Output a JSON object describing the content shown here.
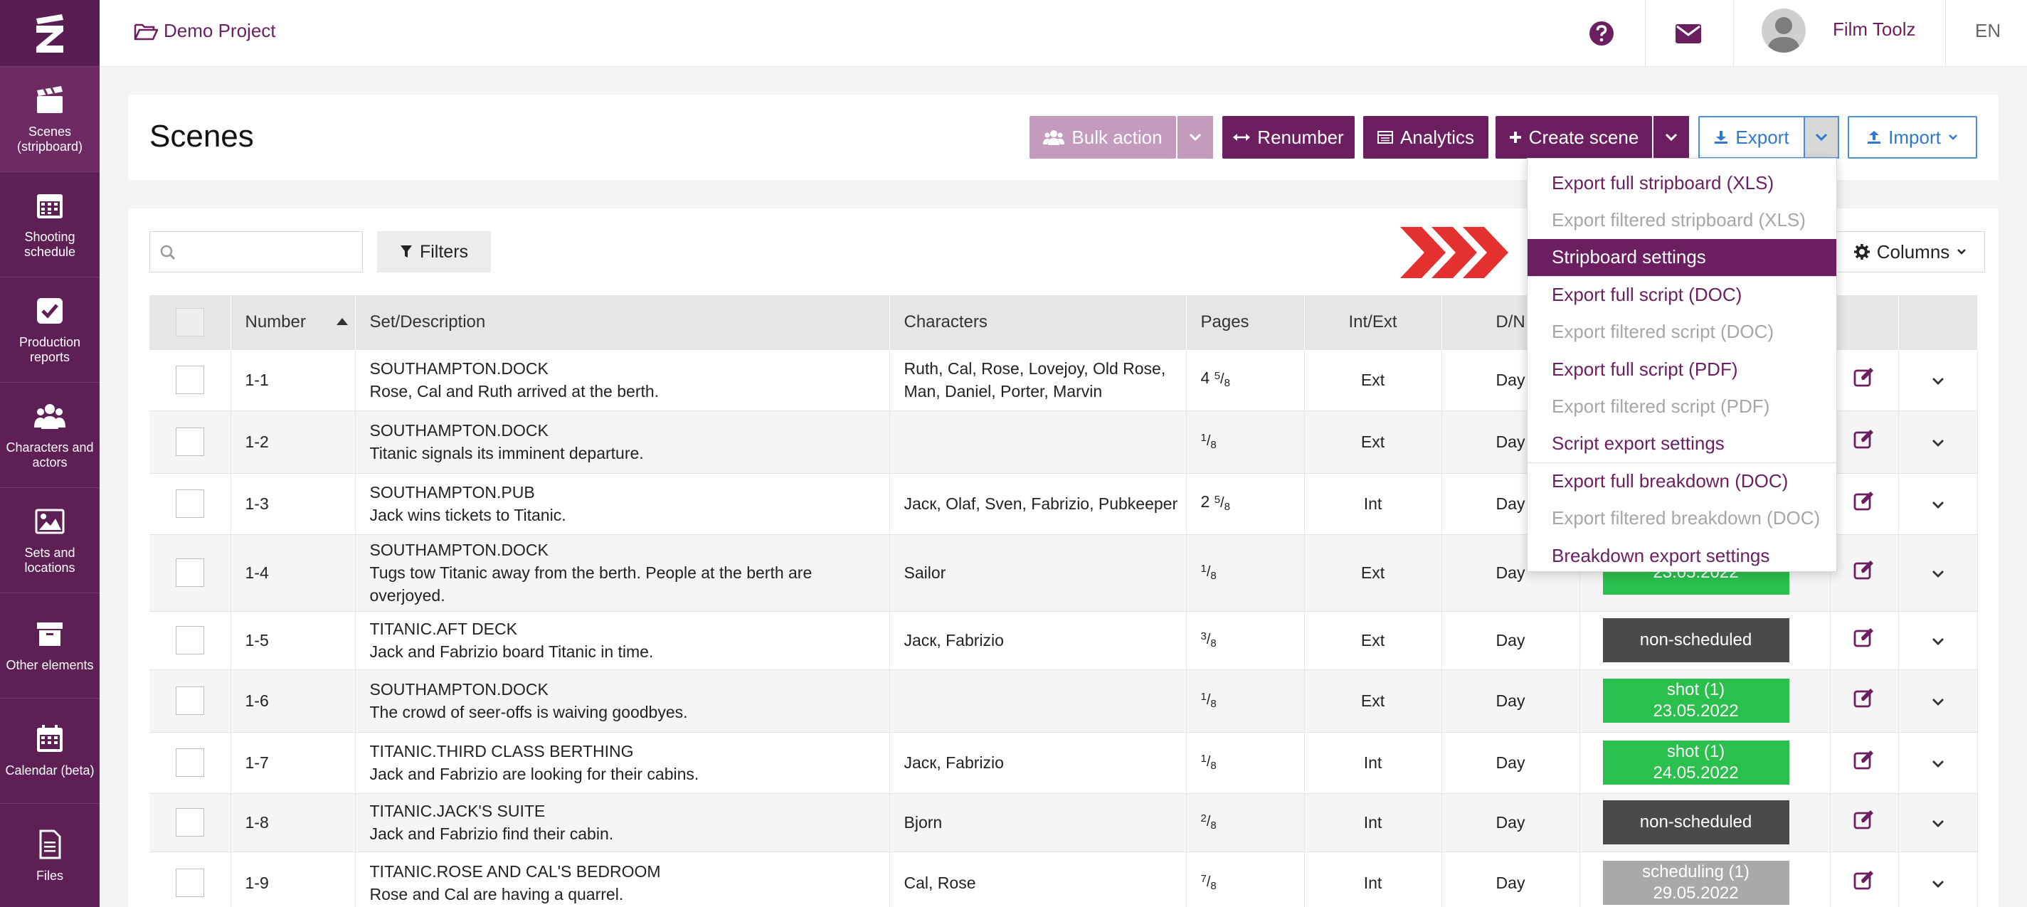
{
  "sidebar": {
    "items": [
      {
        "label": "Scenes (stripboard)",
        "icon": "clapperboard-icon"
      },
      {
        "label": "Shooting schedule",
        "icon": "calendar-grid-icon"
      },
      {
        "label": "Production reports",
        "icon": "checkbox-icon"
      },
      {
        "label": "Characters and actors",
        "icon": "users-icon"
      },
      {
        "label": "Sets and locations",
        "icon": "image-icon"
      },
      {
        "label": "Other elements",
        "icon": "archive-icon"
      },
      {
        "label": "Calendar (beta)",
        "icon": "calendar-icon"
      },
      {
        "label": "Files",
        "icon": "file-icon"
      }
    ]
  },
  "topbar": {
    "project": "Demo Project",
    "username": "Film Toolz",
    "language": "EN"
  },
  "header": {
    "title": "Scenes",
    "buttons": {
      "bulk": "Bulk action",
      "renumber": "Renumber",
      "analytics": "Analytics",
      "create": "Create scene",
      "export": "Export",
      "import": "Import"
    }
  },
  "toolbar": {
    "search_placeholder": "",
    "filters": "Filters",
    "columns": "Columns"
  },
  "table": {
    "columns": [
      "Number",
      "Set/Description",
      "Characters",
      "Pages",
      "Int/Ext",
      "D/N"
    ],
    "rows": [
      {
        "num": "1-1",
        "set": "SOUTHAMPTON.DOCK",
        "desc": "Rose, Cal and Ruth arrived at the berth.",
        "chars": "Ruth, Cal, Rose, Lovejoy, Old Rose, Man, Daniel, Porter, Marvin",
        "pw": "4",
        "pn": "5",
        "pd": "8",
        "ie": "Ext",
        "dn": "Day",
        "st1": "",
        "st2": "",
        "stc": ""
      },
      {
        "num": "1-2",
        "set": "SOUTHAMPTON.DOCK",
        "desc": "Titanic signals its imminent departure.",
        "chars": "",
        "pw": "",
        "pn": "1",
        "pd": "8",
        "ie": "Ext",
        "dn": "Day",
        "st1": "",
        "st2": "",
        "stc": ""
      },
      {
        "num": "1-3",
        "set": "SOUTHAMPTON.PUB",
        "desc": "Jack wins tickets to Titanic.",
        "chars": "Jacк, Olaf, Sven, Fabrizio, Pubkeeper",
        "pw": "2",
        "pn": "5",
        "pd": "8",
        "ie": "Int",
        "dn": "Day",
        "st1": "",
        "st2": "",
        "stc": ""
      },
      {
        "num": "1-4",
        "set": "SOUTHAMPTON.DOCK",
        "desc": "Tugs tow Titanic away from the berth. People at the berth are overjoyed.",
        "chars": "Sailor",
        "pw": "",
        "pn": "1",
        "pd": "8",
        "ie": "Ext",
        "dn": "Day",
        "st1": "23.05.2022",
        "st2": "",
        "stc": "green"
      },
      {
        "num": "1-5",
        "set": "TITANIC.AFT DECK",
        "desc": "Jack and Fabrizio board Titanic in time.",
        "chars": "Jacк, Fabrizio",
        "pw": "",
        "pn": "3",
        "pd": "8",
        "ie": "Ext",
        "dn": "Day",
        "st1": "non-scheduled",
        "st2": "",
        "stc": "dark"
      },
      {
        "num": "1-6",
        "set": "SOUTHAMPTON.DOCK",
        "desc": "The crowd of seer-offs is waiving goodbyes.",
        "chars": "",
        "pw": "",
        "pn": "1",
        "pd": "8",
        "ie": "Ext",
        "dn": "Day",
        "st1": "shot (1)",
        "st2": "23.05.2022",
        "stc": "green"
      },
      {
        "num": "1-7",
        "set": "TITANIC.THIRD CLASS BERTHING",
        "desc": "Jack and Fabrizio are looking for their cabins.",
        "chars": "Jacк, Fabrizio",
        "pw": "",
        "pn": "1",
        "pd": "8",
        "ie": "Int",
        "dn": "Day",
        "st1": "shot (1)",
        "st2": "24.05.2022",
        "stc": "green"
      },
      {
        "num": "1-8",
        "set": "TITANIC.JACK'S SUITE",
        "desc": "Jack and Fabrizio find their cabin.",
        "chars": "Bjorn",
        "pw": "",
        "pn": "2",
        "pd": "8",
        "ie": "Int",
        "dn": "Day",
        "st1": "non-scheduled",
        "st2": "",
        "stc": "dark"
      },
      {
        "num": "1-9",
        "set": "TITANIC.ROSE AND CAL'S BEDROOM",
        "desc": "Rose and Cal are having a quarrel.",
        "chars": "Cal, Rose",
        "pw": "",
        "pn": "7",
        "pd": "8",
        "ie": "Int",
        "dn": "Day",
        "st1": "scheduling (1)",
        "st2": "29.05.2022",
        "stc": "grey"
      }
    ]
  },
  "export_menu": [
    {
      "label": "Export full stripboard (XLS)",
      "state": "enabled"
    },
    {
      "label": "Export filtered stripboard (XLS)",
      "state": "disabled"
    },
    {
      "label": "Stripboard settings",
      "state": "active"
    },
    {
      "label": "Export full script (DOC)",
      "state": "enabled"
    },
    {
      "label": "Export filtered script (DOC)",
      "state": "disabled"
    },
    {
      "label": "Export full script (PDF)",
      "state": "enabled"
    },
    {
      "label": "Export filtered script (PDF)",
      "state": "disabled"
    },
    {
      "label": "Script export settings",
      "state": "enabled"
    },
    {
      "label": "Export full breakdown (DOC)",
      "state": "enabled"
    },
    {
      "label": "Export filtered breakdown (DOC)",
      "state": "disabled"
    },
    {
      "label": "Breakdown export settings",
      "state": "enabled"
    }
  ],
  "colors": {
    "brand": "#6b1f61",
    "accent_blue": "#2f78d0",
    "status_green": "#2bbf4d",
    "status_dark": "#4a4a4a",
    "arrow_red": "#e53030"
  }
}
